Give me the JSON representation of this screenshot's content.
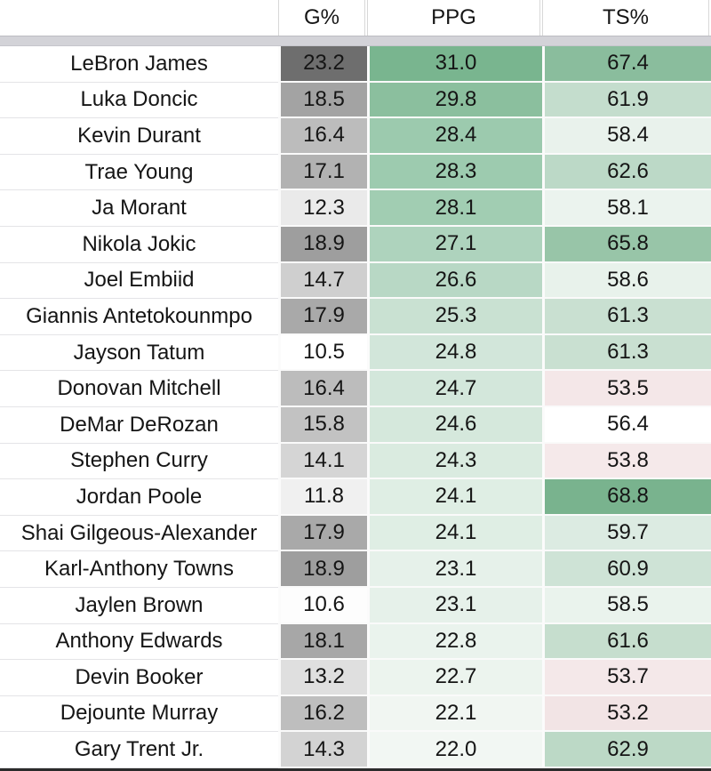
{
  "table": {
    "header": {
      "name": "",
      "g_pct": "G%",
      "ppg": "PPG",
      "ts_pct": "TS%"
    },
    "rows": [
      {
        "name": "LeBron James",
        "g_pct": "23.2",
        "ppg": "31.0",
        "ts_pct": "67.4",
        "colors": {
          "g": "#6e6e6e",
          "ppg": "#79b58f",
          "ts": "#8abd9d"
        }
      },
      {
        "name": "Luka Doncic",
        "g_pct": "18.5",
        "ppg": "29.8",
        "ts_pct": "61.9",
        "colors": {
          "g": "#a3a3a3",
          "ppg": "#8bbf9e",
          "ts": "#c4ddcd"
        }
      },
      {
        "name": "Kevin Durant",
        "g_pct": "16.4",
        "ppg": "28.4",
        "ts_pct": "58.4",
        "colors": {
          "g": "#bcbcbc",
          "ppg": "#9ccaae",
          "ts": "#e9f2ec"
        }
      },
      {
        "name": "Trae Young",
        "g_pct": "17.1",
        "ppg": "28.3",
        "ts_pct": "62.6",
        "colors": {
          "g": "#b2b2b2",
          "ppg": "#9dcbaf",
          "ts": "#bcd9c7"
        }
      },
      {
        "name": "Ja Morant",
        "g_pct": "12.3",
        "ppg": "28.1",
        "ts_pct": "58.1",
        "colors": {
          "g": "#eaeaea",
          "ppg": "#a1cdb2",
          "ts": "#ebf3ee"
        }
      },
      {
        "name": "Nikola Jokic",
        "g_pct": "18.9",
        "ppg": "27.1",
        "ts_pct": "65.8",
        "colors": {
          "g": "#9e9e9e",
          "ppg": "#aed3bd",
          "ts": "#98c5a8"
        }
      },
      {
        "name": "Joel Embiid",
        "g_pct": "14.7",
        "ppg": "26.6",
        "ts_pct": "58.6",
        "colors": {
          "g": "#cfcfcf",
          "ppg": "#b8d8c5",
          "ts": "#e8f2eb"
        }
      },
      {
        "name": "Giannis Antetokounmpo",
        "g_pct": "17.9",
        "ppg": "25.3",
        "ts_pct": "61.3",
        "colors": {
          "g": "#a9a9a9",
          "ppg": "#c9e1d2",
          "ts": "#c9e0d1"
        }
      },
      {
        "name": "Jayson Tatum",
        "g_pct": "10.5",
        "ppg": "24.8",
        "ts_pct": "61.3",
        "colors": {
          "g": "#ffffff",
          "ppg": "#d2e6da",
          "ts": "#c9e0d1"
        }
      },
      {
        "name": "Donovan Mitchell",
        "g_pct": "16.4",
        "ppg": "24.7",
        "ts_pct": "53.5",
        "colors": {
          "g": "#bcbcbc",
          "ppg": "#d3e7db",
          "ts": "#f4e7e8"
        }
      },
      {
        "name": "DeMar DeRozan",
        "g_pct": "15.8",
        "ppg": "24.6",
        "ts_pct": "56.4",
        "colors": {
          "g": "#c2c2c2",
          "ppg": "#d5e8dc",
          "ts": "#ffffff"
        }
      },
      {
        "name": "Stephen Curry",
        "g_pct": "14.1",
        "ppg": "24.3",
        "ts_pct": "53.8",
        "colors": {
          "g": "#d5d5d5",
          "ppg": "#daebe0",
          "ts": "#f5e9ea"
        }
      },
      {
        "name": "Jordan Poole",
        "g_pct": "11.8",
        "ppg": "24.1",
        "ts_pct": "68.8",
        "colors": {
          "g": "#f0f0f0",
          "ppg": "#dfeee4",
          "ts": "#79b38e"
        }
      },
      {
        "name": "Shai Gilgeous-Alexander",
        "g_pct": "17.9",
        "ppg": "24.1",
        "ts_pct": "59.7",
        "colors": {
          "g": "#a9a9a9",
          "ppg": "#dfeee4",
          "ts": "#dcebe2"
        }
      },
      {
        "name": "Karl-Anthony Towns",
        "g_pct": "18.9",
        "ppg": "23.1",
        "ts_pct": "60.9",
        "colors": {
          "g": "#9e9e9e",
          "ppg": "#e6f1ea",
          "ts": "#cee3d6"
        }
      },
      {
        "name": "Jaylen Brown",
        "g_pct": "10.6",
        "ppg": "23.1",
        "ts_pct": "58.5",
        "colors": {
          "g": "#fdfdfd",
          "ppg": "#e6f1ea",
          "ts": "#eaf3ed"
        }
      },
      {
        "name": "Anthony Edwards",
        "g_pct": "18.1",
        "ppg": "22.8",
        "ts_pct": "61.6",
        "colors": {
          "g": "#a7a7a7",
          "ppg": "#eaf3ed",
          "ts": "#c6dece"
        }
      },
      {
        "name": "Devin Booker",
        "g_pct": "13.2",
        "ppg": "22.7",
        "ts_pct": "53.7",
        "colors": {
          "g": "#dfdfdf",
          "ppg": "#ecf4ee",
          "ts": "#f4e8e9"
        }
      },
      {
        "name": "Dejounte Murray",
        "g_pct": "16.2",
        "ppg": "22.1",
        "ts_pct": "53.2",
        "colors": {
          "g": "#bebebe",
          "ppg": "#f1f6f2",
          "ts": "#f2e4e5"
        }
      },
      {
        "name": "Gary Trent Jr.",
        "g_pct": "14.3",
        "ppg": "22.0",
        "ts_pct": "62.9",
        "colors": {
          "g": "#d3d3d3",
          "ppg": "#f2f7f3",
          "ts": "#bcd9c6"
        }
      }
    ]
  },
  "colors": {
    "text": "#151515",
    "freeze_bar": "#d3d3d8",
    "row_divider": "#e4e4e7",
    "cell_gap": "#fbfbfb",
    "bottom_bar": "#2b2b2b",
    "header_border": "#d8d8d8"
  }
}
